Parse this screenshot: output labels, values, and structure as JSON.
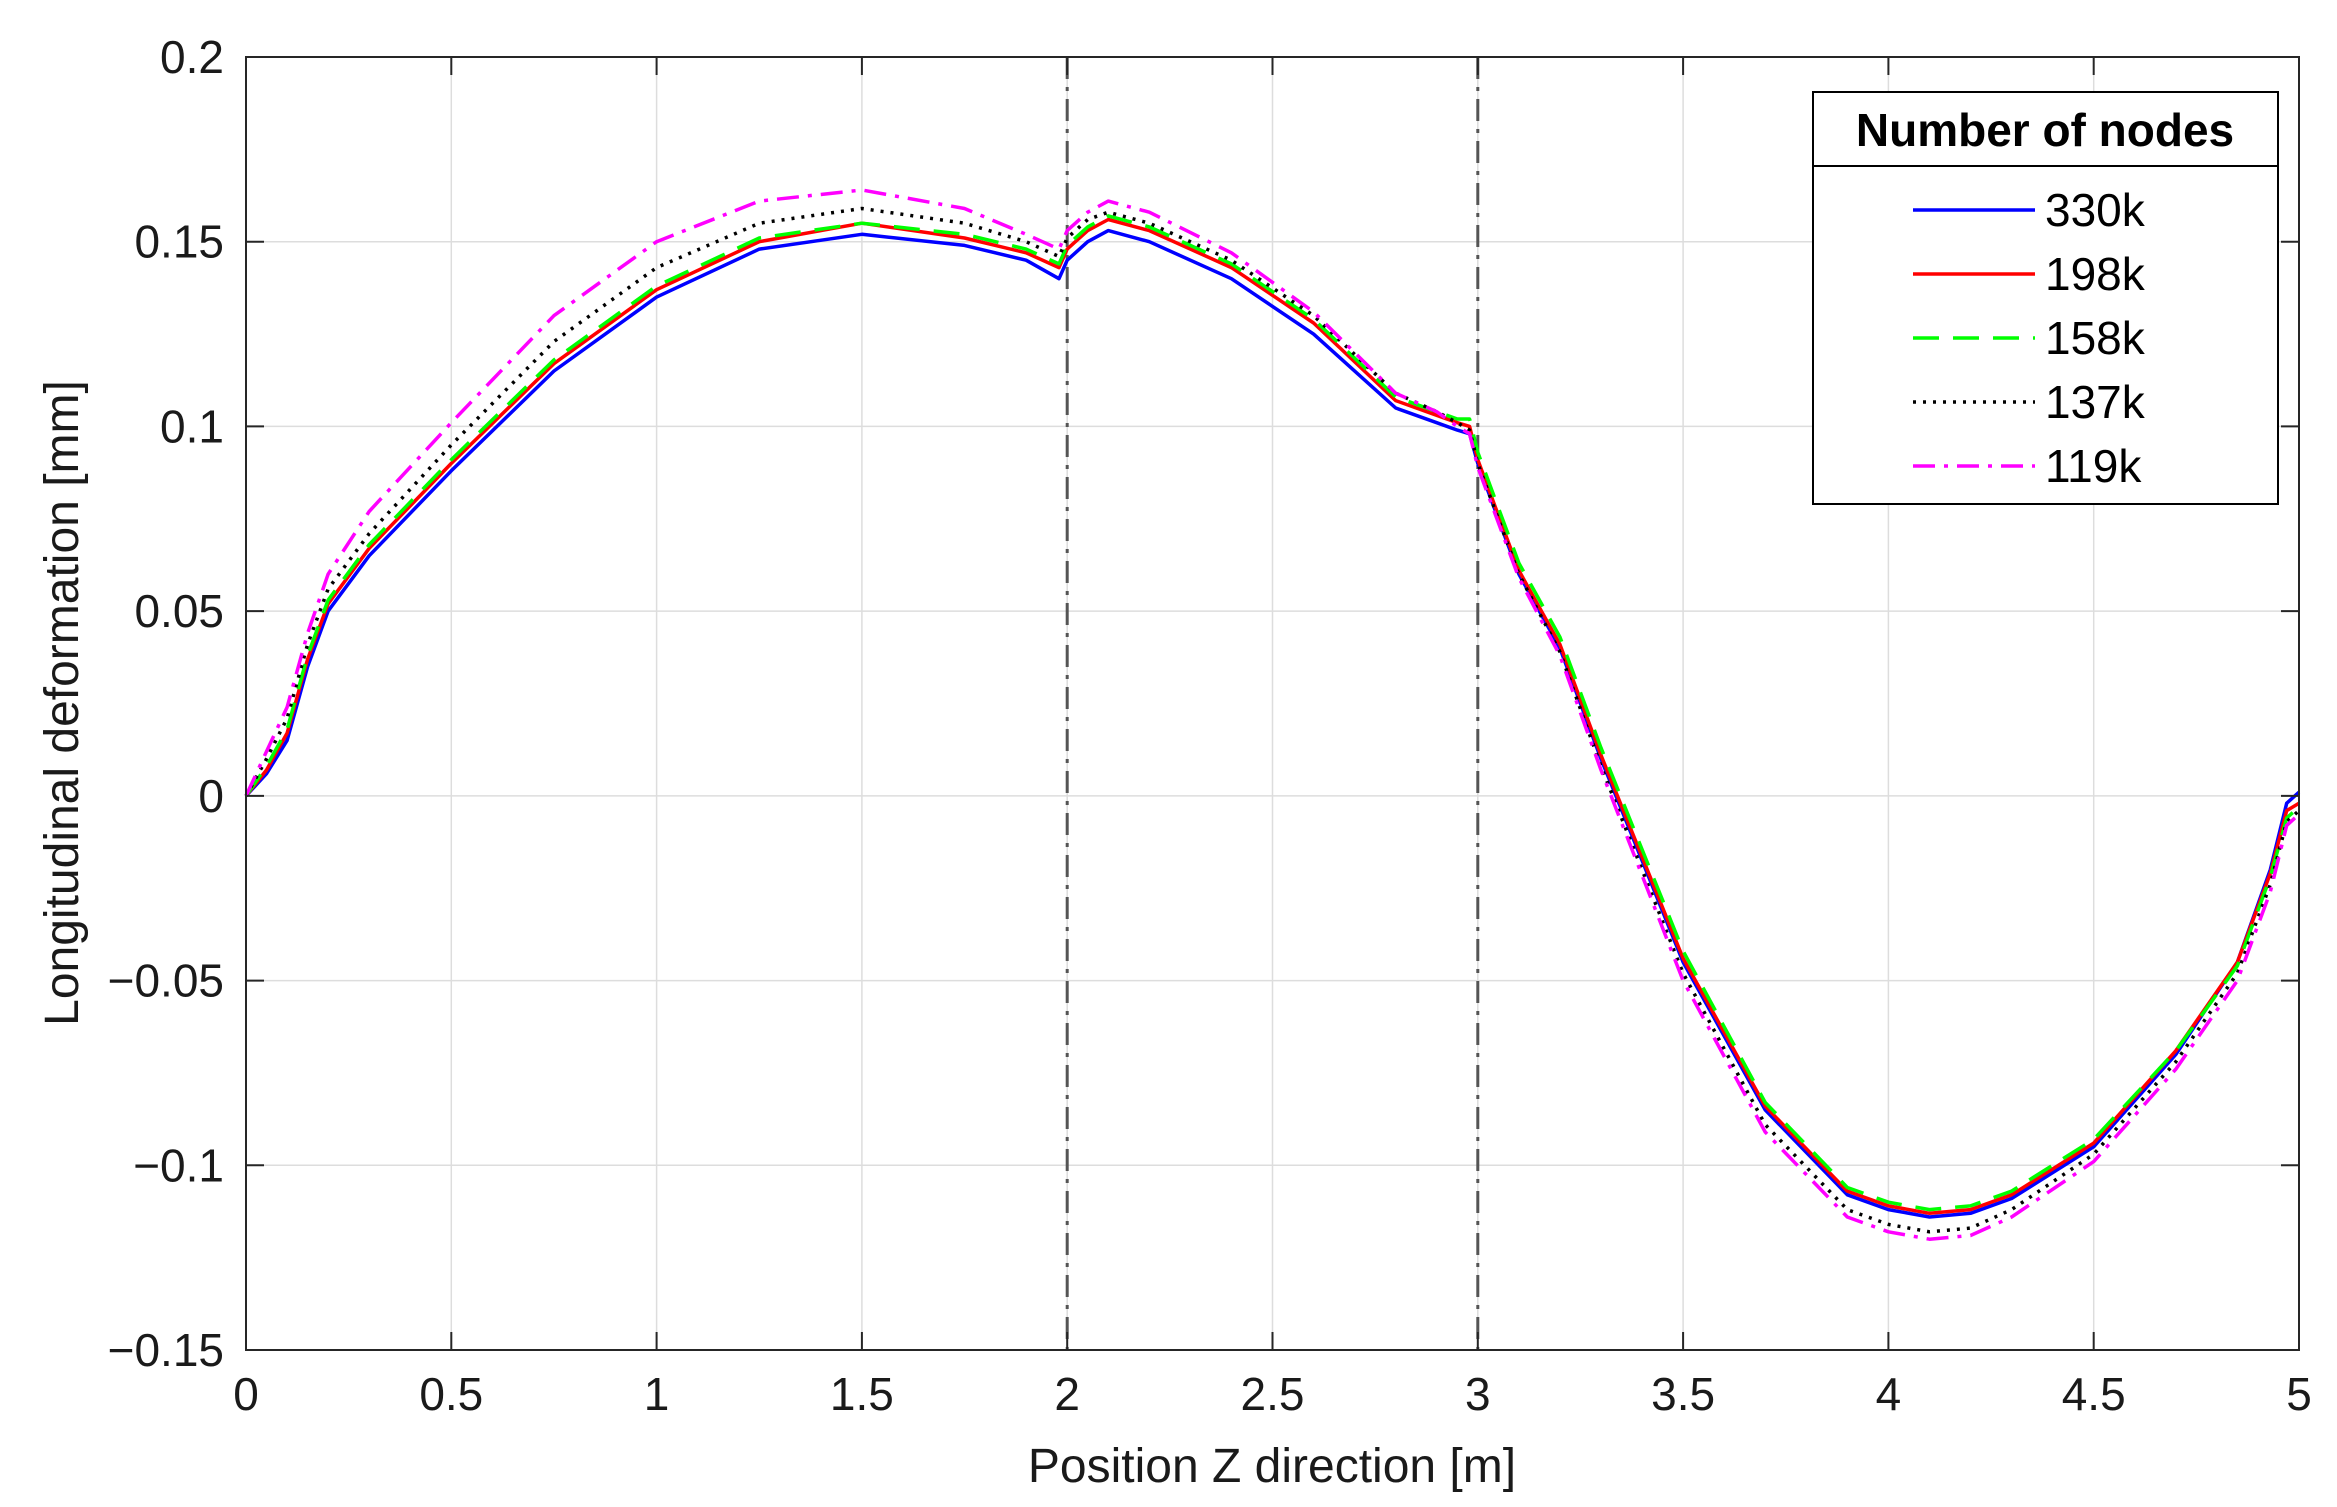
{
  "chart_data": {
    "type": "line",
    "title": "",
    "xlabel": "Position Z direction [m]",
    "ylabel": "Longitudinal deformation [mm]",
    "xlim": [
      0,
      5
    ],
    "ylim": [
      -0.15,
      0.2
    ],
    "x_ticks": [
      0,
      0.5,
      1,
      1.5,
      2,
      2.5,
      3,
      3.5,
      4,
      4.5,
      5
    ],
    "x_tick_labels": [
      "0",
      "0.5",
      "1",
      "1.5",
      "2",
      "2.5",
      "3",
      "3.5",
      "4",
      "4.5",
      "5"
    ],
    "y_ticks": [
      0.2,
      0.15,
      0.1,
      0.05,
      0,
      -0.05,
      -0.1,
      -0.15
    ],
    "y_tick_labels": [
      "0.2",
      "0.15",
      "0.1",
      "0.05",
      "0",
      "−0.05",
      "−0.1",
      "−0.15"
    ],
    "grid": true,
    "vertical_reference_lines": [
      2,
      3
    ],
    "legend": {
      "title": "Number of nodes",
      "position": "top-right"
    },
    "series": [
      {
        "name": "330k",
        "color": "#0000ff",
        "dash": "solid",
        "x": [
          0,
          0.05,
          0.1,
          0.15,
          0.2,
          0.3,
          0.5,
          0.75,
          1.0,
          1.25,
          1.5,
          1.75,
          1.9,
          1.98,
          2.0,
          2.05,
          2.1,
          2.2,
          2.4,
          2.6,
          2.8,
          2.9,
          2.95,
          2.98,
          3.0,
          3.05,
          3.1,
          3.2,
          3.3,
          3.5,
          3.7,
          3.9,
          4.0,
          4.1,
          4.2,
          4.3,
          4.5,
          4.7,
          4.85,
          4.93,
          4.97,
          5.0
        ],
        "y": [
          0,
          0.006,
          0.015,
          0.035,
          0.05,
          0.065,
          0.088,
          0.115,
          0.135,
          0.148,
          0.152,
          0.149,
          0.145,
          0.14,
          0.145,
          0.15,
          0.153,
          0.15,
          0.14,
          0.125,
          0.105,
          0.101,
          0.099,
          0.098,
          0.09,
          0.075,
          0.06,
          0.04,
          0.01,
          -0.045,
          -0.085,
          -0.108,
          -0.112,
          -0.114,
          -0.113,
          -0.109,
          -0.095,
          -0.07,
          -0.045,
          -0.02,
          -0.002,
          0.001
        ]
      },
      {
        "name": "198k",
        "color": "#ff0000",
        "dash": "solid",
        "x": [
          0,
          0.05,
          0.1,
          0.15,
          0.2,
          0.3,
          0.5,
          0.75,
          1.0,
          1.25,
          1.5,
          1.75,
          1.9,
          1.98,
          2.0,
          2.05,
          2.1,
          2.2,
          2.4,
          2.6,
          2.8,
          2.9,
          2.95,
          2.98,
          3.0,
          3.05,
          3.1,
          3.2,
          3.3,
          3.5,
          3.7,
          3.9,
          4.0,
          4.1,
          4.2,
          4.3,
          4.5,
          4.7,
          4.85,
          4.93,
          4.97,
          5.0
        ],
        "y": [
          0,
          0.007,
          0.017,
          0.037,
          0.052,
          0.067,
          0.09,
          0.117,
          0.137,
          0.15,
          0.155,
          0.151,
          0.147,
          0.143,
          0.148,
          0.153,
          0.156,
          0.153,
          0.143,
          0.128,
          0.107,
          0.103,
          0.101,
          0.1,
          0.091,
          0.076,
          0.061,
          0.041,
          0.011,
          -0.044,
          -0.084,
          -0.107,
          -0.111,
          -0.113,
          -0.112,
          -0.108,
          -0.094,
          -0.069,
          -0.045,
          -0.021,
          -0.004,
          -0.002
        ]
      },
      {
        "name": "158k",
        "color": "#00ff00",
        "dash": "dashed",
        "x": [
          0,
          0.05,
          0.1,
          0.15,
          0.2,
          0.3,
          0.5,
          0.75,
          1.0,
          1.25,
          1.5,
          1.75,
          1.9,
          1.98,
          2.0,
          2.05,
          2.1,
          2.2,
          2.4,
          2.6,
          2.8,
          2.9,
          2.95,
          2.98,
          3.0,
          3.05,
          3.1,
          3.2,
          3.3,
          3.5,
          3.7,
          3.9,
          4.0,
          4.1,
          4.2,
          4.3,
          4.5,
          4.7,
          4.85,
          4.93,
          4.97,
          5.0
        ],
        "y": [
          0,
          0.008,
          0.018,
          0.038,
          0.053,
          0.068,
          0.091,
          0.118,
          0.138,
          0.151,
          0.155,
          0.152,
          0.148,
          0.144,
          0.149,
          0.154,
          0.157,
          0.154,
          0.144,
          0.129,
          0.108,
          0.104,
          0.102,
          0.102,
          0.093,
          0.078,
          0.063,
          0.043,
          0.013,
          -0.042,
          -0.083,
          -0.106,
          -0.11,
          -0.112,
          -0.111,
          -0.107,
          -0.093,
          -0.069,
          -0.046,
          -0.022,
          -0.006,
          -0.003
        ]
      },
      {
        "name": "137k",
        "color": "#000000",
        "dash": "dotted",
        "x": [
          0,
          0.05,
          0.1,
          0.15,
          0.2,
          0.3,
          0.5,
          0.75,
          1.0,
          1.25,
          1.5,
          1.75,
          1.9,
          1.98,
          2.0,
          2.05,
          2.1,
          2.2,
          2.4,
          2.6,
          2.8,
          2.9,
          2.95,
          2.98,
          3.0,
          3.05,
          3.1,
          3.2,
          3.3,
          3.5,
          3.7,
          3.9,
          4.0,
          4.1,
          4.2,
          4.3,
          4.5,
          4.7,
          4.85,
          4.93,
          4.97,
          5.0
        ],
        "y": [
          0,
          0.01,
          0.021,
          0.041,
          0.056,
          0.071,
          0.095,
          0.123,
          0.143,
          0.155,
          0.159,
          0.155,
          0.15,
          0.146,
          0.151,
          0.156,
          0.158,
          0.155,
          0.145,
          0.13,
          0.109,
          0.104,
          0.101,
          0.099,
          0.09,
          0.075,
          0.06,
          0.039,
          0.008,
          -0.048,
          -0.089,
          -0.112,
          -0.116,
          -0.118,
          -0.117,
          -0.112,
          -0.097,
          -0.072,
          -0.048,
          -0.024,
          -0.007,
          -0.004
        ]
      },
      {
        "name": "119k",
        "color": "#ff00ff",
        "dash": "dashdot",
        "x": [
          0,
          0.05,
          0.1,
          0.15,
          0.2,
          0.3,
          0.5,
          0.75,
          1.0,
          1.25,
          1.5,
          1.75,
          1.9,
          1.98,
          2.0,
          2.05,
          2.1,
          2.2,
          2.4,
          2.6,
          2.8,
          2.9,
          2.95,
          2.98,
          3.0,
          3.05,
          3.1,
          3.2,
          3.3,
          3.5,
          3.7,
          3.9,
          4.0,
          4.1,
          4.2,
          4.3,
          4.5,
          4.7,
          4.85,
          4.93,
          4.97,
          5.0
        ],
        "y": [
          0,
          0.012,
          0.024,
          0.044,
          0.06,
          0.077,
          0.101,
          0.13,
          0.15,
          0.161,
          0.164,
          0.159,
          0.152,
          0.148,
          0.153,
          0.158,
          0.161,
          0.158,
          0.147,
          0.131,
          0.109,
          0.104,
          0.1,
          0.098,
          0.089,
          0.074,
          0.059,
          0.038,
          0.007,
          -0.05,
          -0.091,
          -0.114,
          -0.118,
          -0.12,
          -0.119,
          -0.114,
          -0.099,
          -0.074,
          -0.05,
          -0.026,
          -0.008,
          -0.005
        ]
      }
    ]
  }
}
